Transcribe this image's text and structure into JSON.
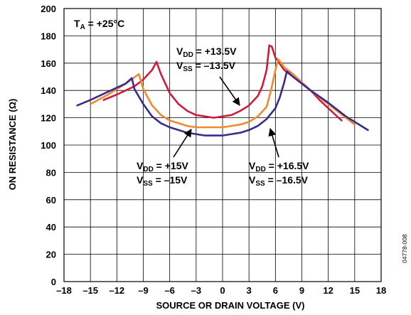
{
  "chart_data": {
    "type": "line",
    "xlabel": "SOURCE OR DRAIN VOLTAGE (V)",
    "ylabel": "ON RESISTANCE (Ω)",
    "xlim": [
      -18,
      18
    ],
    "ylim": [
      0,
      200
    ],
    "xticks": [
      -18,
      -15,
      -12,
      -9,
      -6,
      -3,
      0,
      3,
      6,
      9,
      12,
      15,
      18
    ],
    "xtick_labels": [
      "–18",
      "–15",
      "–12",
      "–9",
      "–6",
      "–3",
      "0",
      "3",
      "6",
      "9",
      "12",
      "15",
      "18"
    ],
    "yticks": [
      0,
      20,
      40,
      60,
      80,
      100,
      120,
      140,
      160,
      180,
      200
    ],
    "ytick_labels": [
      "0",
      "20",
      "40",
      "60",
      "80",
      "100",
      "120",
      "140",
      "160",
      "180",
      "200"
    ],
    "grid": true,
    "condition": {
      "main": "T",
      "sub": "A",
      "rest": " = +25°C"
    },
    "figure_code": "04778-008",
    "series": [
      {
        "color": "#d01c3c",
        "label_lines": [
          {
            "main": "V",
            "sub": "DD",
            "rest": " = +13.5V"
          },
          {
            "main": "V",
            "sub": "SS",
            "rest": " = –13.5V"
          }
        ],
        "x": [
          -13.5,
          -12,
          -10,
          -9,
          -8,
          -7.5,
          -7,
          -6,
          -5,
          -4,
          -3,
          -2,
          -1,
          0,
          1,
          2,
          3,
          4,
          4.5,
          5,
          5.3,
          5.6,
          6,
          7,
          8,
          9,
          10,
          11,
          12,
          13.5
        ],
        "y": [
          133,
          137,
          143,
          148,
          155,
          161,
          152,
          138,
          130,
          125,
          122,
          121,
          120,
          121,
          122,
          125,
          129,
          136,
          143,
          155,
          173,
          172,
          164,
          155,
          150,
          145,
          140,
          133,
          127,
          118
        ]
      },
      {
        "color": "#f08a32",
        "label_lines": [
          {
            "main": "V",
            "sub": "DD",
            "rest": " = +15V"
          },
          {
            "main": "V",
            "sub": "SS",
            "rest": " = –15V"
          }
        ],
        "x": [
          -15,
          -13,
          -11,
          -9.5,
          -9,
          -8,
          -7,
          -6,
          -5,
          -4,
          -3,
          -2,
          -1,
          0,
          1,
          2,
          3,
          4,
          5,
          5.5,
          6,
          6.3,
          7,
          8,
          10,
          12,
          15
        ],
        "y": [
          130,
          137,
          145,
          152,
          141,
          129,
          122,
          118,
          116,
          114,
          113,
          113,
          113,
          113,
          114,
          115,
          117,
          121,
          128,
          140,
          155,
          163,
          157,
          152,
          140,
          130,
          115
        ]
      },
      {
        "color": "#3a2a8a",
        "label_lines": [
          {
            "main": "V",
            "sub": "DD",
            "rest": " = +16.5V"
          },
          {
            "main": "V",
            "sub": "SS",
            "rest": " = –16.5V"
          }
        ],
        "x": [
          -16.5,
          -15,
          -13,
          -11,
          -10.3,
          -10,
          -9,
          -8,
          -7,
          -6,
          -5,
          -4,
          -3,
          -2,
          -1,
          0,
          1,
          2,
          3,
          4,
          5,
          6,
          6.5,
          7,
          7.3,
          8,
          10,
          12,
          14,
          16.5
        ],
        "y": [
          129,
          133,
          139,
          145,
          149,
          141,
          130,
          121,
          116,
          113,
          111,
          109,
          108,
          107,
          107,
          107,
          108,
          109,
          111,
          114,
          119,
          127,
          135,
          146,
          154,
          150,
          140,
          131,
          121,
          111
        ]
      }
    ]
  }
}
